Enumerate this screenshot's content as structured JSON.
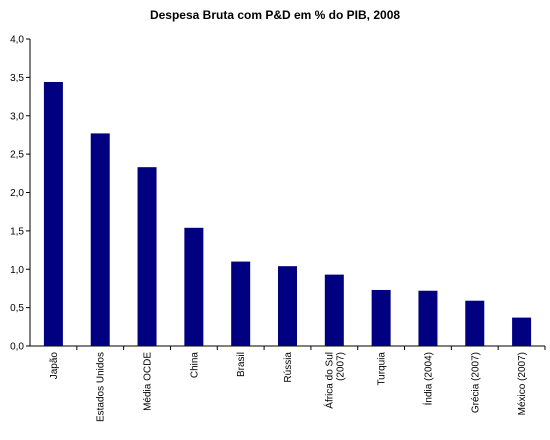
{
  "chart_data": {
    "type": "bar",
    "title": "Despesa Bruta com P&D em % do PIB, 2008",
    "categories": [
      [
        "Japão"
      ],
      [
        "Estados Unidos"
      ],
      [
        "Média OCDE"
      ],
      [
        "China"
      ],
      [
        "Brasil"
      ],
      [
        "Rússia"
      ],
      [
        "África do Sul",
        "(2007)"
      ],
      [
        "Turquia"
      ],
      [
        "Índia (2004)"
      ],
      [
        "Grécia (2007)"
      ],
      [
        "México (2007)"
      ]
    ],
    "values": [
      3.44,
      2.77,
      2.33,
      1.54,
      1.1,
      1.04,
      0.93,
      0.73,
      0.72,
      0.59,
      0.37
    ],
    "yticks": [
      "0,0",
      "0,5",
      "1,0",
      "1,5",
      "2,0",
      "2,5",
      "3,0",
      "3,5",
      "4,0"
    ],
    "ylim": [
      0,
      4
    ],
    "xlabel": "",
    "ylabel": "",
    "grid": false,
    "legend": "none",
    "bar_color": "#000080"
  }
}
